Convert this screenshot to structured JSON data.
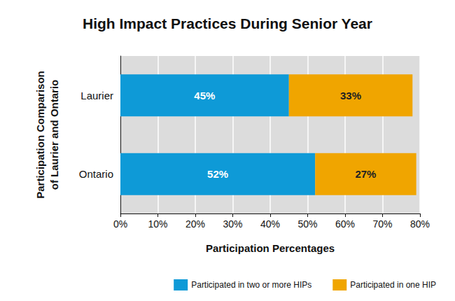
{
  "chart_data": {
    "type": "bar",
    "title": "High Impact Practices During Senior Year",
    "x_label": "Participation Percentages",
    "y_label": "Participation Comparison\nof Laurier and Ontario",
    "orientation": "horizontal",
    "stacked": true,
    "categories": [
      "Laurier",
      "Ontario"
    ],
    "series": [
      {
        "name": "Participated in two or more HIPs",
        "color": "#0e9ad7",
        "values": [
          45,
          52
        ],
        "value_labels": [
          "45%",
          "52%"
        ]
      },
      {
        "name": "Participated in one HIP",
        "color": "#f0a500",
        "values": [
          33,
          27
        ],
        "value_labels": [
          "33%",
          "27%"
        ]
      }
    ],
    "xlim": [
      0,
      80
    ],
    "xticks": [
      {
        "value": 0,
        "label": "0%"
      },
      {
        "value": 10,
        "label": "10%"
      },
      {
        "value": 20,
        "label": "20%"
      },
      {
        "value": 30,
        "label": "30%"
      },
      {
        "value": 40,
        "label": "40%"
      },
      {
        "value": 50,
        "label": "50%"
      },
      {
        "value": 60,
        "label": "60%"
      },
      {
        "value": 70,
        "label": "70%"
      },
      {
        "value": 80,
        "label": "80%"
      }
    ],
    "grid": true,
    "data_labels": true,
    "legend": "bottom"
  }
}
